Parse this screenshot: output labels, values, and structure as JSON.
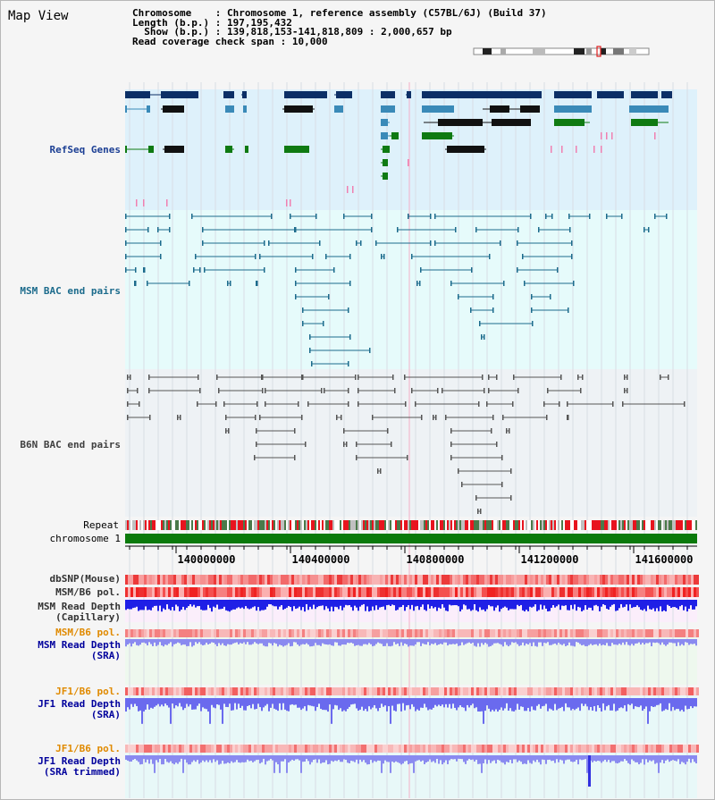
{
  "app": {
    "title": "Map View"
  },
  "info": {
    "chromosome_label": "Chromosome",
    "chromosome_value": "Chromosome 1, reference assembly (C57BL/6J) (Build 37)",
    "length_label": "Length (b.p.)",
    "length_value": "197,195,432",
    "show_label": "Show (b.p.)",
    "show_value": "139,818,153-141,818,809 : 2,000,657 bp",
    "coverage_label": "Read coverage check span",
    "coverage_value": "10,000"
  },
  "tracks": {
    "refseq": {
      "label": "RefSeq Genes",
      "color": "#1c3f94"
    },
    "msm_bac": {
      "label": "MSM BAC end pairs",
      "color": "#1c6b8c"
    },
    "b6n_bac": {
      "label": "B6N BAC end pairs",
      "color": "#404040"
    },
    "repeat": {
      "label": "Repeat"
    },
    "chromosome": {
      "label": "chromosome 1"
    },
    "dbsnp": {
      "label": "dbSNP(Mouse)"
    },
    "msm_pol": {
      "label": "MSM/B6 pol."
    },
    "msm_depth_cap": {
      "label": "MSM Read Depth\n(Capillary)"
    },
    "msm_pol_2": {
      "label": "MSM/B6 pol.",
      "color": "#e08a00"
    },
    "msm_depth_sra": {
      "label": "MSM Read Depth\n(SRA)",
      "color": "#00009c"
    },
    "jf1_pol": {
      "label": "JF1/B6 pol.",
      "color": "#e08a00"
    },
    "jf1_depth_sra": {
      "label": "JF1 Read Depth\n(SRA)",
      "color": "#00009c"
    },
    "jf1_pol_2": {
      "label": "JF1/B6 pol.",
      "color": "#e08a00"
    },
    "jf1_depth_trim": {
      "label": "JF1 Read Depth\n(SRA trimmed)",
      "color": "#00009c"
    }
  },
  "axis": {
    "ticks": [
      "140000000",
      "140400000",
      "140800000",
      "141200000",
      "141600000"
    ]
  },
  "colors": {
    "refseq_bg": "#def1fb",
    "msm_bg": "#e6fbfb",
    "b6n_bg": "#eef2f5",
    "gene_dark": "#0c2f66",
    "gene_mid": "#3a8ab8",
    "gene_green": "#0f7a12",
    "chrom_green": "#0b7a0b",
    "snp_red": "#f25050",
    "depth_blue": "#1f1fe6",
    "depth_light": "#8a8af0"
  }
}
